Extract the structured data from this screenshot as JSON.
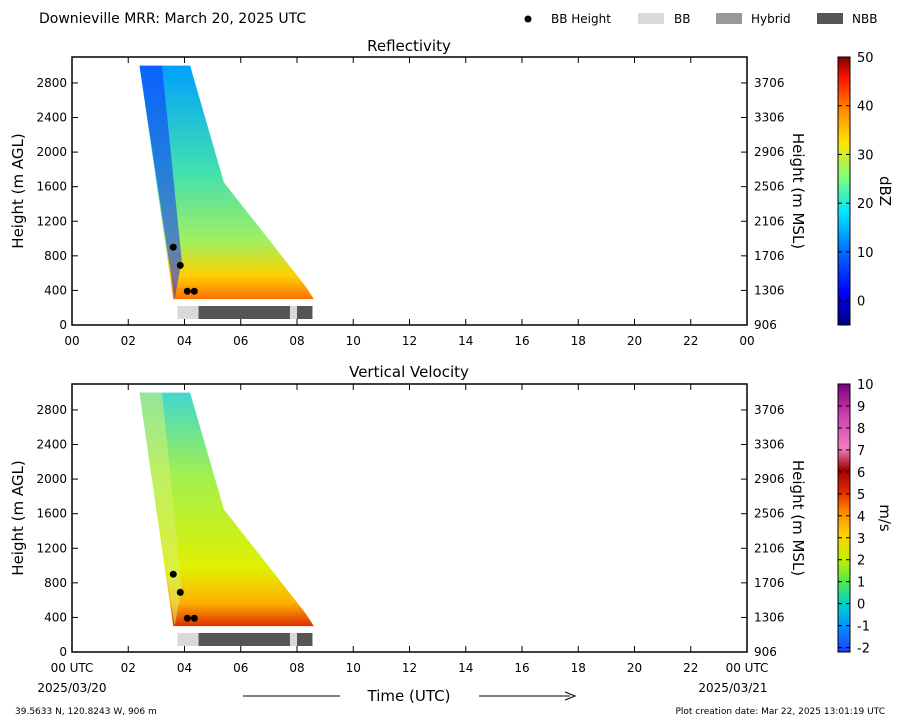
{
  "header": {
    "title": "Downieville MRR:  March 20, 2025 UTC",
    "legend": [
      {
        "label": "BB Height",
        "kind": "dot",
        "color": "#000000"
      },
      {
        "label": "BB",
        "kind": "box",
        "color": "#d9d9d9"
      },
      {
        "label": "Hybrid",
        "kind": "box",
        "color": "#999999"
      },
      {
        "label": "NBB",
        "kind": "box",
        "color": "#555555"
      }
    ]
  },
  "footer": {
    "location": "39.5633 N, 120.8243 W, 906 m",
    "created": "Plot creation date: Mar 22, 2025 13:01:19 UTC",
    "xlabel": "Time (UTC)",
    "start_date": "2025/03/20",
    "end_date": "2025/03/21"
  },
  "chart_data": [
    {
      "type": "heatmap",
      "title": "Reflectivity",
      "xlabel": "",
      "ylabel": "Height (m AGL)",
      "ylabel_right": "Height (m MSL)",
      "x_ticks": [
        "00",
        "02",
        "04",
        "06",
        "08",
        "10",
        "12",
        "14",
        "16",
        "18",
        "20",
        "22",
        "00"
      ],
      "y_ticks": [
        0,
        400,
        800,
        1200,
        1600,
        2000,
        2400,
        2800
      ],
      "y_ticks_right": [
        906,
        1306,
        1706,
        2106,
        2506,
        2906,
        3306,
        3706
      ],
      "xlim": [
        0,
        24
      ],
      "ylim": [
        0,
        3100
      ],
      "colorbar": {
        "label": "dBZ",
        "range": [
          -5,
          50
        ],
        "ticks": [
          0,
          10,
          20,
          30,
          40,
          50
        ]
      },
      "bb_height_points": [
        {
          "x": 3.6,
          "y": 900
        },
        {
          "x": 3.85,
          "y": 690
        },
        {
          "x": 4.1,
          "y": 390
        },
        {
          "x": 4.35,
          "y": 390
        }
      ],
      "bb_type_bar": [
        {
          "start": 3.75,
          "end": 4.5,
          "type": "BB"
        },
        {
          "start": 4.5,
          "end": 7.75,
          "type": "NBB"
        },
        {
          "start": 7.75,
          "end": 8.0,
          "type": "BB"
        },
        {
          "start": 8.0,
          "end": 8.55,
          "type": "NBB"
        }
      ],
      "echo_region": {
        "start": 2.4,
        "end": 8.6,
        "bottom": 300,
        "top": 3000
      }
    },
    {
      "type": "heatmap",
      "title": "Vertical Velocity",
      "xlabel": "Time (UTC)",
      "ylabel": "Height (m AGL)",
      "ylabel_right": "Height (m MSL)",
      "x_ticks": [
        "00 UTC",
        "02",
        "04",
        "06",
        "08",
        "10",
        "12",
        "14",
        "16",
        "18",
        "20",
        "22",
        "00 UTC"
      ],
      "y_ticks": [
        0,
        400,
        800,
        1200,
        1600,
        2000,
        2400,
        2800
      ],
      "y_ticks_right": [
        906,
        1306,
        1706,
        2106,
        2506,
        2906,
        3306,
        3706
      ],
      "xlim": [
        0,
        24
      ],
      "ylim": [
        0,
        3100
      ],
      "colorbar": {
        "label": "m/s",
        "range": [
          -2.2,
          10
        ],
        "ticks": [
          -2,
          -1,
          0,
          1,
          2,
          3,
          4,
          5,
          6,
          7,
          8,
          9,
          10
        ]
      },
      "bb_height_points": [
        {
          "x": 3.6,
          "y": 900
        },
        {
          "x": 3.85,
          "y": 690
        },
        {
          "x": 4.1,
          "y": 390
        },
        {
          "x": 4.35,
          "y": 390
        }
      ],
      "bb_type_bar": [
        {
          "start": 3.75,
          "end": 4.5,
          "type": "BB"
        },
        {
          "start": 4.5,
          "end": 7.75,
          "type": "NBB"
        },
        {
          "start": 7.75,
          "end": 8.0,
          "type": "BB"
        },
        {
          "start": 8.0,
          "end": 8.55,
          "type": "NBB"
        }
      ],
      "echo_region": {
        "start": 2.4,
        "end": 8.6,
        "bottom": 300,
        "top": 3000
      }
    }
  ]
}
